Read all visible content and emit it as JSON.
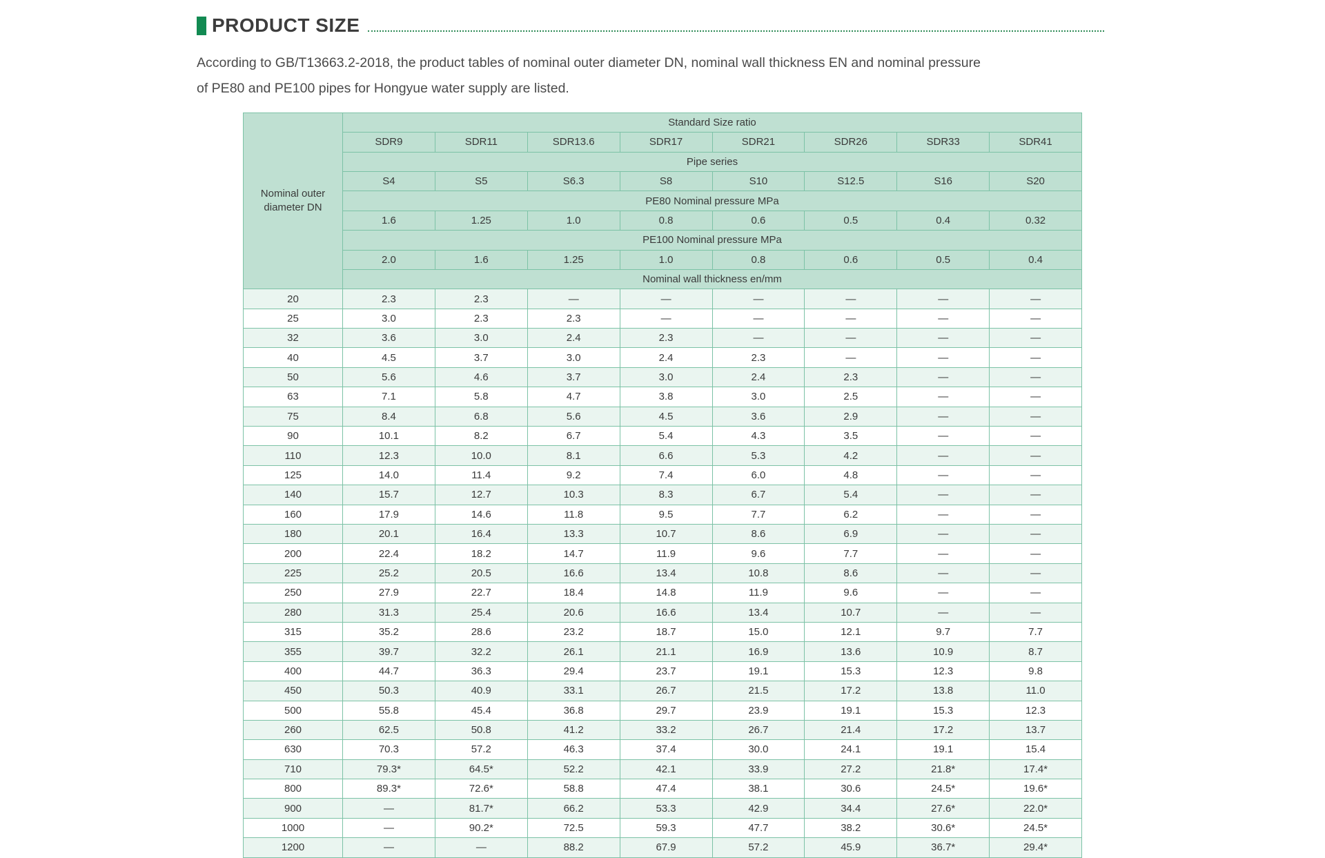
{
  "page": {
    "title": "PRODUCT SIZE",
    "description_line1": "According to GB/T13663.2-2018, the product tables of nominal outer diameter DN, nominal wall thickness EN and nominal pressure",
    "description_line2": "of PE80 and PE100 pipes for Hongyue water supply are listed."
  },
  "colors": {
    "accent_green": "#128a52",
    "dotted_line_green": "#2f8b57",
    "header_bg": "#bfe0d2",
    "row_alt_bg": "#eaf5f0",
    "border_green": "#7cc2a6",
    "outer_border": "#8d9d95",
    "text_dark": "#3a3a3a"
  },
  "table": {
    "corner_label": "Nominal outer diameter DN",
    "header": {
      "standard_size_ratio_label": "Standard Size ratio",
      "sdr": [
        "SDR9",
        "SDR11",
        "SDR13.6",
        "SDR17",
        "SDR21",
        "SDR26",
        "SDR33",
        "SDR41"
      ],
      "pipe_series_label": "Pipe series",
      "series": [
        "S4",
        "S5",
        "S6.3",
        "S8",
        "S10",
        "S12.5",
        "S16",
        "S20"
      ],
      "pe80_label": "PE80 Nominal pressure MPa",
      "pe80": [
        "1.6",
        "1.25",
        "1.0",
        "0.8",
        "0.6",
        "0.5",
        "0.4",
        "0.32"
      ],
      "pe100_label": "PE100 Nominal pressure MPa",
      "pe100": [
        "2.0",
        "1.6",
        "1.25",
        "1.0",
        "0.8",
        "0.6",
        "0.5",
        "0.4"
      ],
      "wall_thickness_label": "Nominal wall thickness en/mm"
    },
    "rows": [
      {
        "dn": "20",
        "values": [
          "2.3",
          "2.3",
          "—",
          "—",
          "—",
          "—",
          "—",
          "—"
        ]
      },
      {
        "dn": "25",
        "values": [
          "3.0",
          "2.3",
          "2.3",
          "—",
          "—",
          "—",
          "—",
          "—"
        ]
      },
      {
        "dn": "32",
        "values": [
          "3.6",
          "3.0",
          "2.4",
          "2.3",
          "—",
          "—",
          "—",
          "—"
        ]
      },
      {
        "dn": "40",
        "values": [
          "4.5",
          "3.7",
          "3.0",
          "2.4",
          "2.3",
          "—",
          "—",
          "—"
        ]
      },
      {
        "dn": "50",
        "values": [
          "5.6",
          "4.6",
          "3.7",
          "3.0",
          "2.4",
          "2.3",
          "—",
          "—"
        ]
      },
      {
        "dn": "63",
        "values": [
          "7.1",
          "5.8",
          "4.7",
          "3.8",
          "3.0",
          "2.5",
          "—",
          "—"
        ]
      },
      {
        "dn": "75",
        "values": [
          "8.4",
          "6.8",
          "5.6",
          "4.5",
          "3.6",
          "2.9",
          "—",
          "—"
        ]
      },
      {
        "dn": "90",
        "values": [
          "10.1",
          "8.2",
          "6.7",
          "5.4",
          "4.3",
          "3.5",
          "—",
          "—"
        ]
      },
      {
        "dn": "110",
        "values": [
          "12.3",
          "10.0",
          "8.1",
          "6.6",
          "5.3",
          "4.2",
          "—",
          "—"
        ]
      },
      {
        "dn": "125",
        "values": [
          "14.0",
          "11.4",
          "9.2",
          "7.4",
          "6.0",
          "4.8",
          "—",
          "—"
        ]
      },
      {
        "dn": "140",
        "values": [
          "15.7",
          "12.7",
          "10.3",
          "8.3",
          "6.7",
          "5.4",
          "—",
          "—"
        ]
      },
      {
        "dn": "160",
        "values": [
          "17.9",
          "14.6",
          "11.8",
          "9.5",
          "7.7",
          "6.2",
          "—",
          "—"
        ]
      },
      {
        "dn": "180",
        "values": [
          "20.1",
          "16.4",
          "13.3",
          "10.7",
          "8.6",
          "6.9",
          "—",
          "—"
        ]
      },
      {
        "dn": "200",
        "values": [
          "22.4",
          "18.2",
          "14.7",
          "11.9",
          "9.6",
          "7.7",
          "—",
          "—"
        ]
      },
      {
        "dn": "225",
        "values": [
          "25.2",
          "20.5",
          "16.6",
          "13.4",
          "10.8",
          "8.6",
          "—",
          "—"
        ]
      },
      {
        "dn": "250",
        "values": [
          "27.9",
          "22.7",
          "18.4",
          "14.8",
          "11.9",
          "9.6",
          "—",
          "—"
        ]
      },
      {
        "dn": "280",
        "values": [
          "31.3",
          "25.4",
          "20.6",
          "16.6",
          "13.4",
          "10.7",
          "—",
          "—"
        ]
      },
      {
        "dn": "315",
        "values": [
          "35.2",
          "28.6",
          "23.2",
          "18.7",
          "15.0",
          "12.1",
          "9.7",
          "7.7"
        ]
      },
      {
        "dn": "355",
        "values": [
          "39.7",
          "32.2",
          "26.1",
          "21.1",
          "16.9",
          "13.6",
          "10.9",
          "8.7"
        ]
      },
      {
        "dn": "400",
        "values": [
          "44.7",
          "36.3",
          "29.4",
          "23.7",
          "19.1",
          "15.3",
          "12.3",
          "9.8"
        ]
      },
      {
        "dn": "450",
        "values": [
          "50.3",
          "40.9",
          "33.1",
          "26.7",
          "21.5",
          "17.2",
          "13.8",
          "11.0"
        ]
      },
      {
        "dn": "500",
        "values": [
          "55.8",
          "45.4",
          "36.8",
          "29.7",
          "23.9",
          "19.1",
          "15.3",
          "12.3"
        ]
      },
      {
        "dn": "260",
        "values": [
          "62.5",
          "50.8",
          "41.2",
          "33.2",
          "26.7",
          "21.4",
          "17.2",
          "13.7"
        ]
      },
      {
        "dn": "630",
        "values": [
          "70.3",
          "57.2",
          "46.3",
          "37.4",
          "30.0",
          "24.1",
          "19.1",
          "15.4"
        ]
      },
      {
        "dn": "710",
        "values": [
          "79.3*",
          "64.5*",
          "52.2",
          "42.1",
          "33.9",
          "27.2",
          "21.8*",
          "17.4*"
        ]
      },
      {
        "dn": "800",
        "values": [
          "89.3*",
          "72.6*",
          "58.8",
          "47.4",
          "38.1",
          "30.6",
          "24.5*",
          "19.6*"
        ]
      },
      {
        "dn": "900",
        "values": [
          "—",
          "81.7*",
          "66.2",
          "53.3",
          "42.9",
          "34.4",
          "27.6*",
          "22.0*"
        ]
      },
      {
        "dn": "1000",
        "values": [
          "—",
          "90.2*",
          "72.5",
          "59.3",
          "47.7",
          "38.2",
          "30.6*",
          "24.5*"
        ]
      },
      {
        "dn": "1200",
        "values": [
          "—",
          "—",
          "88.2",
          "67.9",
          "57.2",
          "45.9",
          "36.7*",
          "29.4*"
        ]
      }
    ]
  }
}
